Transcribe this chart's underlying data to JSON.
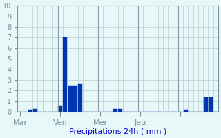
{
  "values": [
    0,
    0,
    0.2,
    0.25,
    0,
    0,
    0,
    0,
    0.6,
    7.0,
    2.5,
    2.5,
    2.6,
    0,
    0,
    0,
    0,
    0,
    0,
    0.3,
    0.3,
    0,
    0,
    0,
    0,
    0,
    0,
    0,
    0,
    0,
    0,
    0,
    0,
    0.2,
    0,
    0,
    0,
    1.4,
    1.4,
    0
  ],
  "n_bars": 40,
  "tick_positions": [
    0,
    8,
    16,
    24,
    32
  ],
  "tick_labels": [
    "Mar",
    "Ven",
    "Mer",
    "Jeu",
    ""
  ],
  "xlabel": "Précipitations 24h ( mm )",
  "ylim": [
    0,
    10
  ],
  "xlim": [
    -0.5,
    39.5
  ],
  "yticks": [
    0,
    1,
    2,
    3,
    4,
    5,
    6,
    7,
    8,
    9,
    10
  ],
  "bar_color": "#0035b5",
  "bar_edge_color": "#003399",
  "bg_color": "#e8f8f8",
  "grid_color": "#b5cece",
  "axis_color": "#7090a0",
  "xlabel_color": "#0000cc",
  "tick_color": "#2244aa",
  "fig_bg": "#e8f8f8",
  "separator_color": "#8899aa"
}
